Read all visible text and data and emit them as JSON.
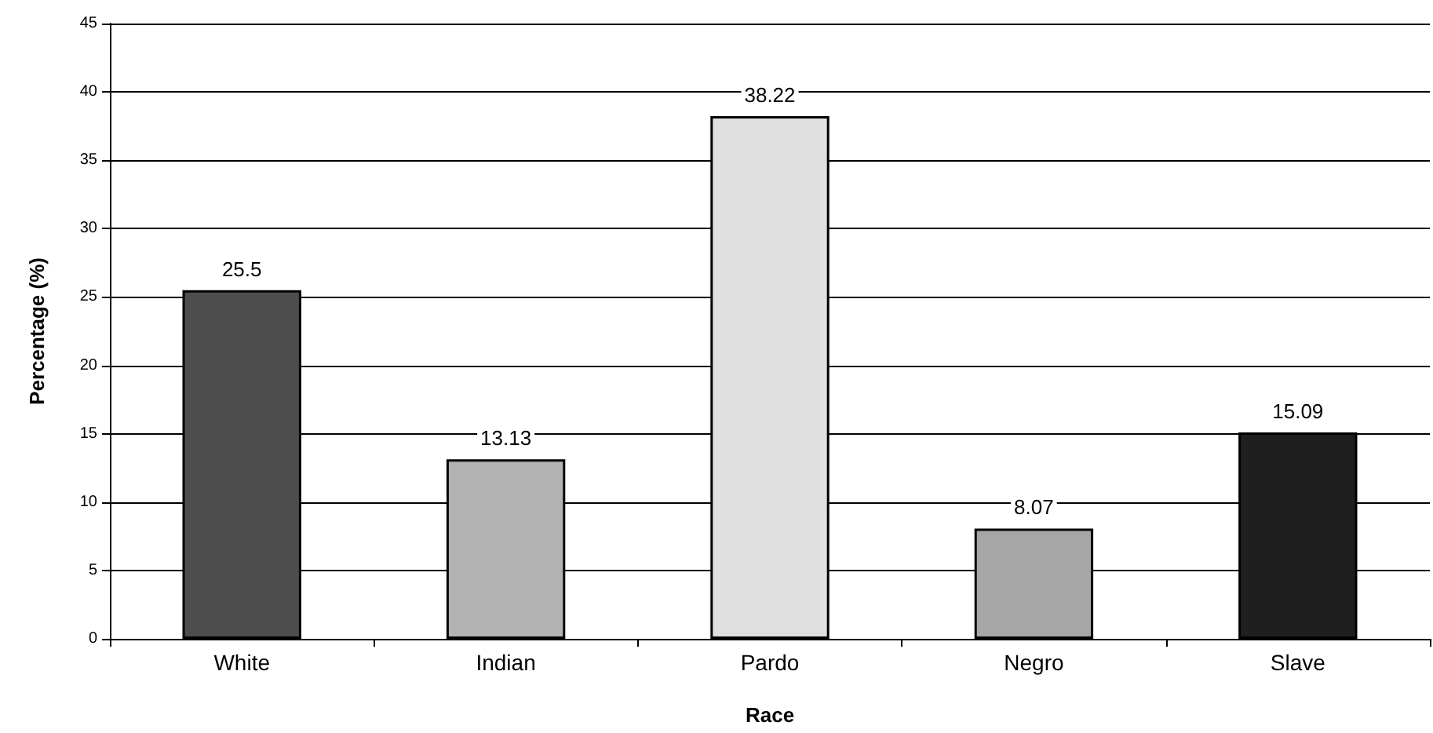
{
  "chart_data": {
    "type": "bar",
    "xlabel": "Race",
    "ylabel": "Percentage (%)",
    "categories": [
      "White",
      "Indian",
      "Pardo",
      "Negro",
      "Slave"
    ],
    "values": [
      25.5,
      13.13,
      38.22,
      8.07,
      15.09
    ],
    "colors": [
      "#4d4d4d",
      "#b3b3b3",
      "#e0e0e0",
      "#a6a6a6",
      "#1f1f1f"
    ],
    "ylim": [
      0,
      45
    ],
    "yticks": [
      0,
      5,
      10,
      15,
      20,
      25,
      30,
      35,
      40,
      45
    ],
    "grid": "y",
    "data_labels": true
  }
}
